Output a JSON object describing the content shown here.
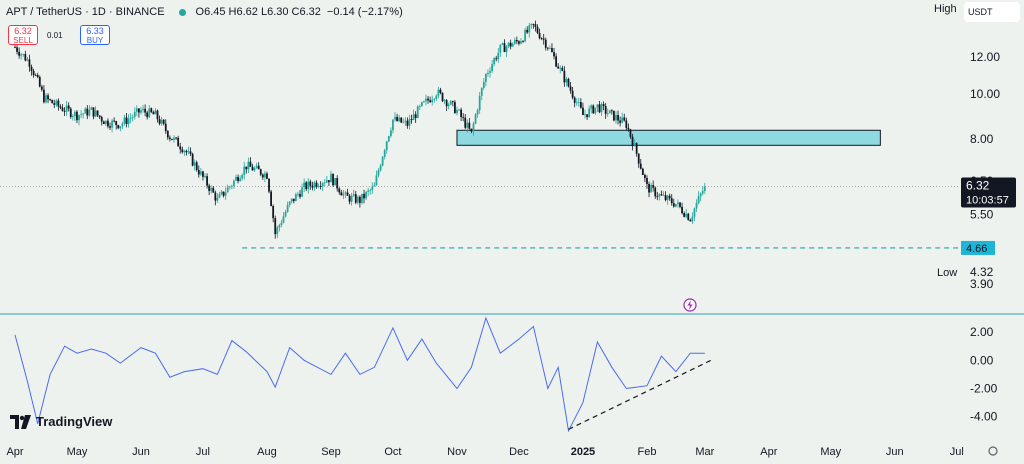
{
  "header": {
    "symbol": "APT / TetherUS · 1D · BINANCE",
    "ohlc": "O6.45 H6.62 L6.30 C6.32",
    "change": "−0.14 (−2.17%)",
    "sell_price": "6.32",
    "sell_label": "SELL",
    "spread": "0.01",
    "buy_price": "6.33",
    "buy_label": "BUY"
  },
  "top_right": {
    "high_label": "High",
    "currency": "USDT"
  },
  "low_label": "Low",
  "branding": "TradingView",
  "colors": {
    "up": "#26a69a",
    "down": "#131722",
    "zone": "#8fd9e0",
    "dashed": "#26a0b8",
    "rsi": "#4a6cf0",
    "background": "#eef2ee"
  },
  "chart_data": [
    {
      "type": "candlestick",
      "title": "APT / TetherUS · 1D · BINANCE",
      "x_tick_labels": [
        "Apr",
        "May",
        "Jun",
        "Jul",
        "Aug",
        "Sep",
        "Oct",
        "Nov",
        "Dec",
        "2025",
        "Feb",
        "Mar",
        "Apr",
        "May",
        "Jun",
        "Jul"
      ],
      "y_tick_labels": [
        "12.00",
        "10.00",
        "8.00",
        "6.50",
        "5.50",
        "3.90"
      ],
      "y_ticks": [
        12,
        10,
        8,
        6.5,
        5.5,
        3.9
      ],
      "ylim": [
        3.6,
        14.0
      ],
      "scale": "log",
      "price_labels": {
        "current": "6.32",
        "countdown": "10:03:57",
        "support": "4.66",
        "low": "4.32"
      },
      "support_level": 4.66,
      "zone": {
        "from": "2024-11-01",
        "to": "2025-05-25",
        "low": 7.75,
        "high": 8.35
      },
      "series": [
        {
          "approx_close": [
            [
              "2024-04-01",
              12.6
            ],
            [
              "2024-04-08",
              11.7
            ],
            [
              "2024-04-15",
              9.8
            ],
            [
              "2024-04-22",
              9.4
            ],
            [
              "2024-05-01",
              9.0
            ],
            [
              "2024-05-08",
              9.2
            ],
            [
              "2024-05-15",
              8.7
            ],
            [
              "2024-05-22",
              8.6
            ],
            [
              "2024-06-01",
              9.2
            ],
            [
              "2024-06-08",
              9.0
            ],
            [
              "2024-06-15",
              8.1
            ],
            [
              "2024-06-22",
              7.6
            ],
            [
              "2024-07-01",
              6.6
            ],
            [
              "2024-07-08",
              5.9
            ],
            [
              "2024-07-15",
              6.4
            ],
            [
              "2024-07-22",
              7.0
            ],
            [
              "2024-08-01",
              6.7
            ],
            [
              "2024-08-05",
              5.0
            ],
            [
              "2024-08-12",
              5.8
            ],
            [
              "2024-08-19",
              6.3
            ],
            [
              "2024-09-01",
              6.6
            ],
            [
              "2024-09-08",
              6.0
            ],
            [
              "2024-09-15",
              5.9
            ],
            [
              "2024-09-22",
              6.3
            ],
            [
              "2024-10-01",
              8.8
            ],
            [
              "2024-10-08",
              8.6
            ],
            [
              "2024-10-15",
              9.4
            ],
            [
              "2024-10-22",
              10.1
            ],
            [
              "2024-11-01",
              9.2
            ],
            [
              "2024-11-08",
              8.2
            ],
            [
              "2024-11-15",
              11.0
            ],
            [
              "2024-11-22",
              12.5
            ],
            [
              "2024-12-01",
              13.0
            ],
            [
              "2024-12-08",
              14.0
            ],
            [
              "2024-12-15",
              12.7
            ],
            [
              "2024-12-22",
              11.0
            ],
            [
              "2025-01-01",
              9.0
            ],
            [
              "2025-01-08",
              9.4
            ],
            [
              "2025-01-15",
              9.0
            ],
            [
              "2025-01-22",
              8.6
            ],
            [
              "2025-02-01",
              6.3
            ],
            [
              "2025-02-08",
              6.0
            ],
            [
              "2025-02-15",
              5.8
            ],
            [
              "2025-02-22",
              5.4
            ],
            [
              "2025-03-01",
              6.32
            ]
          ]
        }
      ]
    },
    {
      "type": "line",
      "x_tick_labels": [
        "Apr",
        "May",
        "Jun",
        "Jul",
        "Aug",
        "Sep",
        "Oct",
        "Nov",
        "Dec",
        "2025",
        "Feb",
        "Mar",
        "Apr",
        "May",
        "Jun",
        "Jul"
      ],
      "y_tick_labels": [
        "2.00",
        "0.00",
        "-2.00",
        "-4.00"
      ],
      "y_ticks": [
        2,
        0,
        -2,
        -4
      ],
      "ylim": [
        -5.3,
        3.0
      ],
      "trendline": {
        "from": [
          "2024-12-25",
          -4.9
        ],
        "to": [
          "2025-03-04",
          0.0
        ]
      },
      "series": [
        {
          "values": [
            [
              "2024-04-01",
              1.8
            ],
            [
              "2024-04-07",
              -1.5
            ],
            [
              "2024-04-12",
              -4.5
            ],
            [
              "2024-04-18",
              -1.0
            ],
            [
              "2024-04-25",
              1.0
            ],
            [
              "2024-05-01",
              0.5
            ],
            [
              "2024-05-08",
              0.8
            ],
            [
              "2024-05-15",
              0.5
            ],
            [
              "2024-05-22",
              -0.2
            ],
            [
              "2024-06-01",
              0.9
            ],
            [
              "2024-06-08",
              0.5
            ],
            [
              "2024-06-15",
              -1.2
            ],
            [
              "2024-06-22",
              -0.8
            ],
            [
              "2024-07-01",
              -0.6
            ],
            [
              "2024-07-08",
              -1.0
            ],
            [
              "2024-07-15",
              1.4
            ],
            [
              "2024-07-22",
              0.6
            ],
            [
              "2024-08-01",
              -0.8
            ],
            [
              "2024-08-05",
              -1.9
            ],
            [
              "2024-08-12",
              0.9
            ],
            [
              "2024-08-19",
              0.0
            ],
            [
              "2024-09-01",
              -1.0
            ],
            [
              "2024-09-08",
              0.5
            ],
            [
              "2024-09-15",
              -1.0
            ],
            [
              "2024-09-22",
              -0.5
            ],
            [
              "2024-10-01",
              2.3
            ],
            [
              "2024-10-08",
              0.0
            ],
            [
              "2024-10-15",
              1.5
            ],
            [
              "2024-10-22",
              -0.2
            ],
            [
              "2024-11-01",
              -2.0
            ],
            [
              "2024-11-08",
              -0.5
            ],
            [
              "2024-11-15",
              3.0
            ],
            [
              "2024-11-22",
              0.5
            ],
            [
              "2024-12-01",
              1.5
            ],
            [
              "2024-12-08",
              2.4
            ],
            [
              "2024-12-15",
              -2.0
            ],
            [
              "2024-12-20",
              -0.5
            ],
            [
              "2024-12-25",
              -5.0
            ],
            [
              "2025-01-01",
              -3.0
            ],
            [
              "2025-01-08",
              1.3
            ],
            [
              "2025-01-15",
              -0.5
            ],
            [
              "2025-01-22",
              -2.0
            ],
            [
              "2025-02-01",
              -1.8
            ],
            [
              "2025-02-08",
              0.3
            ],
            [
              "2025-02-15",
              -0.8
            ],
            [
              "2025-02-22",
              0.5
            ],
            [
              "2025-03-01",
              0.5
            ]
          ]
        }
      ]
    }
  ]
}
